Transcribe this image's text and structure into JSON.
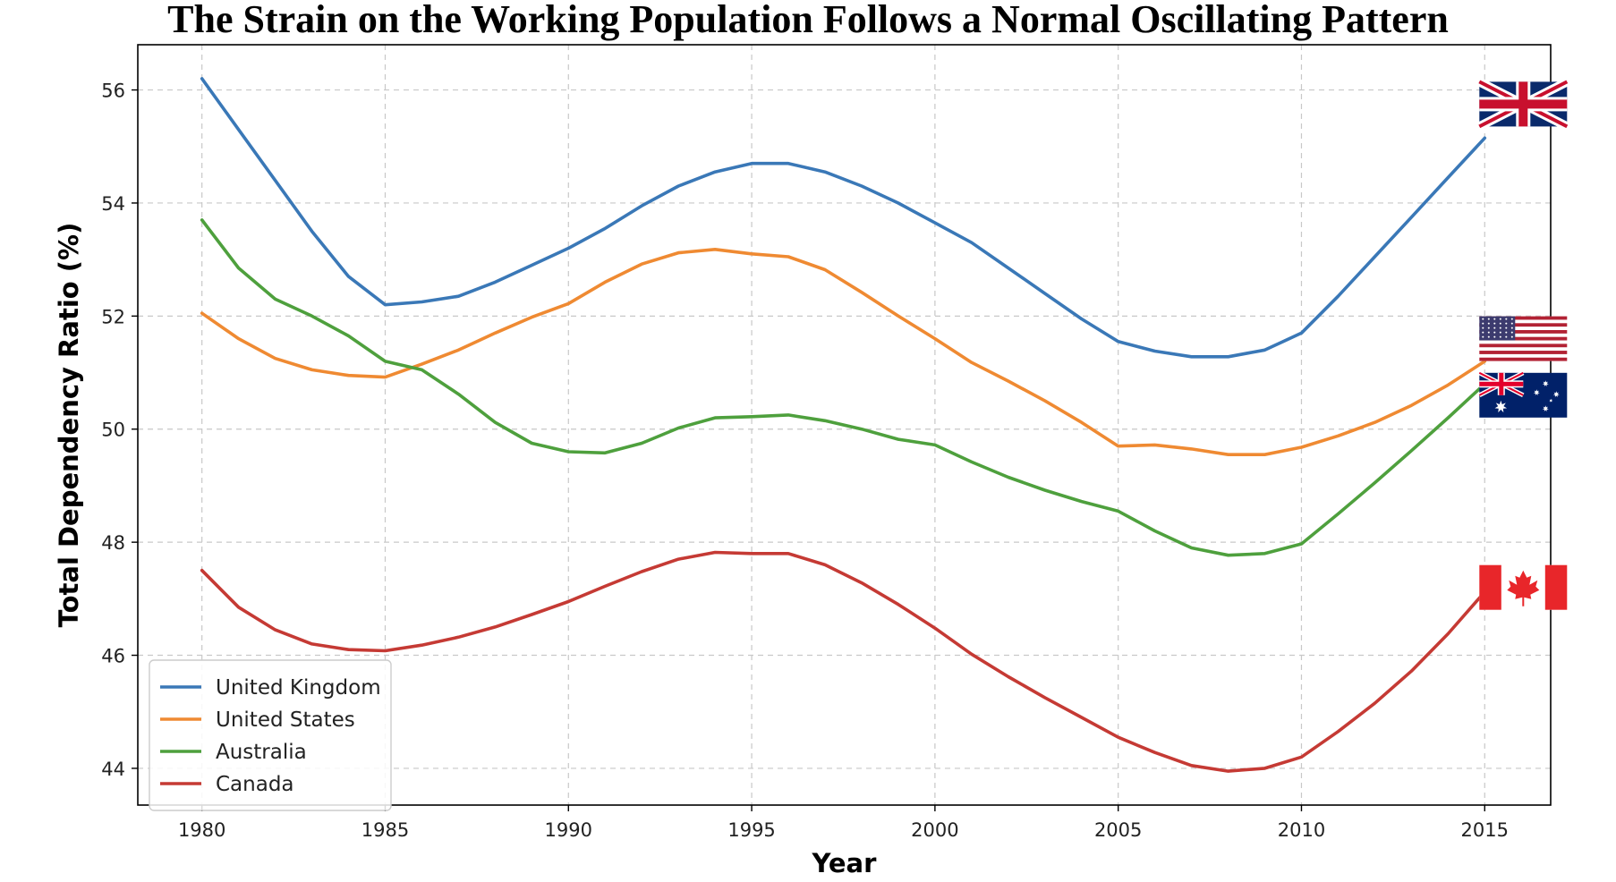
{
  "chart_data": {
    "type": "line",
    "title": "The Strain on the Working Population Follows a Normal Oscillating Pattern",
    "xlabel": "Year",
    "ylabel": "Total Dependency Ratio (%)",
    "xlim": [
      1978.25,
      2016.8
    ],
    "ylim": [
      43.35,
      56.8
    ],
    "xticks": [
      1980,
      1985,
      1990,
      1995,
      2000,
      2005,
      2010,
      2015
    ],
    "yticks": [
      44,
      46,
      48,
      50,
      52,
      54,
      56
    ],
    "grid": true,
    "legend_position": "lower-left",
    "x": [
      1980,
      1981,
      1982,
      1983,
      1984,
      1985,
      1986,
      1987,
      1988,
      1989,
      1990,
      1991,
      1992,
      1993,
      1994,
      1995,
      1996,
      1997,
      1998,
      1999,
      2000,
      2001,
      2002,
      2003,
      2004,
      2005,
      2006,
      2007,
      2008,
      2009,
      2010,
      2011,
      2012,
      2013,
      2014,
      2015
    ],
    "series": [
      {
        "name": "United Kingdom",
        "color": "#3a78b7",
        "flag": "uk-flag",
        "values": [
          56.2,
          55.3,
          54.4,
          53.5,
          52.7,
          52.2,
          52.25,
          52.35,
          52.6,
          52.9,
          53.2,
          53.55,
          53.95,
          54.3,
          54.55,
          54.7,
          54.7,
          54.55,
          54.3,
          54.0,
          53.65,
          53.3,
          52.85,
          52.4,
          51.95,
          51.55,
          51.38,
          51.28,
          51.28,
          51.4,
          51.7,
          52.35,
          53.05,
          53.75,
          54.45,
          55.15
        ]
      },
      {
        "name": "United States",
        "color": "#ef8a32",
        "flag": "us-flag",
        "values": [
          52.05,
          51.6,
          51.25,
          51.05,
          50.95,
          50.92,
          51.15,
          51.4,
          51.7,
          51.98,
          52.22,
          52.6,
          52.92,
          53.12,
          53.18,
          53.1,
          53.05,
          52.82,
          52.42,
          52.0,
          51.6,
          51.18,
          50.85,
          50.5,
          50.12,
          49.7,
          49.72,
          49.65,
          49.55,
          49.55,
          49.68,
          49.88,
          50.12,
          50.42,
          50.78,
          51.2
        ]
      },
      {
        "name": "Australia",
        "color": "#4ea03d",
        "flag": "au-flag",
        "values": [
          53.7,
          52.85,
          52.3,
          52.0,
          51.65,
          51.2,
          51.05,
          50.62,
          50.12,
          49.75,
          49.6,
          49.58,
          49.75,
          50.02,
          50.2,
          50.22,
          50.25,
          50.15,
          50.0,
          49.82,
          49.72,
          49.42,
          49.15,
          48.92,
          48.72,
          48.55,
          48.2,
          47.9,
          47.77,
          47.8,
          47.97,
          48.5,
          49.05,
          49.62,
          50.2,
          50.8
        ]
      },
      {
        "name": "Canada",
        "color": "#c53a34",
        "flag": "ca-flag",
        "values": [
          47.5,
          46.85,
          46.45,
          46.2,
          46.1,
          46.08,
          46.18,
          46.32,
          46.5,
          46.72,
          46.95,
          47.22,
          47.48,
          47.7,
          47.82,
          47.8,
          47.8,
          47.6,
          47.28,
          46.9,
          46.48,
          46.02,
          45.62,
          45.25,
          44.9,
          44.55,
          44.28,
          44.05,
          43.95,
          44.0,
          44.2,
          44.65,
          45.15,
          45.72,
          46.38,
          47.12
        ]
      }
    ]
  }
}
